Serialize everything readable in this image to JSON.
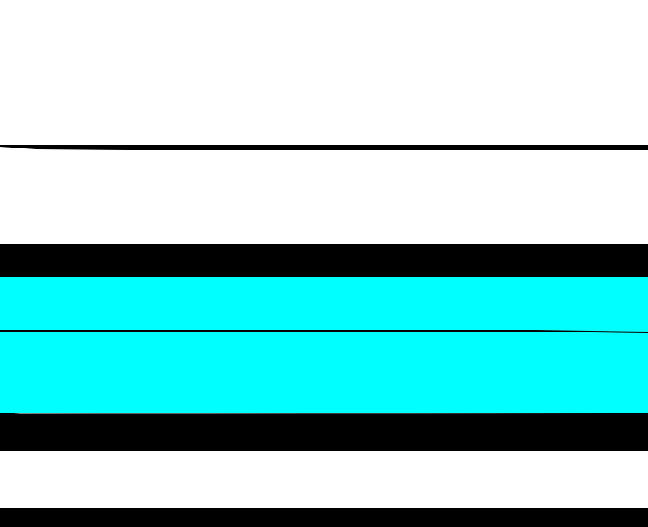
{
  "colors": {
    "background": "#ffffff",
    "band_dark": "#000000",
    "band_accent": "#00ffff"
  }
}
